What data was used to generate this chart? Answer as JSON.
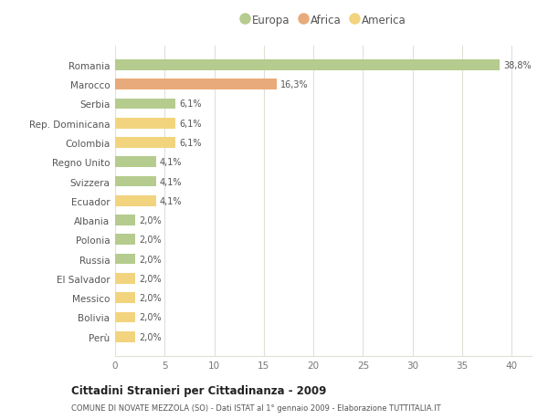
{
  "categories": [
    "Romania",
    "Marocco",
    "Serbia",
    "Rep. Dominicana",
    "Colombia",
    "Regno Unito",
    "Svizzera",
    "Ecuador",
    "Albania",
    "Polonia",
    "Russia",
    "El Salvador",
    "Messico",
    "Bolivia",
    "Perù"
  ],
  "values": [
    38.8,
    16.3,
    6.1,
    6.1,
    6.1,
    4.1,
    4.1,
    4.1,
    2.0,
    2.0,
    2.0,
    2.0,
    2.0,
    2.0,
    2.0
  ],
  "labels": [
    "38,8%",
    "16,3%",
    "6,1%",
    "6,1%",
    "6,1%",
    "4,1%",
    "4,1%",
    "4,1%",
    "2,0%",
    "2,0%",
    "2,0%",
    "2,0%",
    "2,0%",
    "2,0%",
    "2,0%"
  ],
  "colors": [
    "#b5cc8e",
    "#e8aa7a",
    "#b5cc8e",
    "#f2d47e",
    "#f2d47e",
    "#b5cc8e",
    "#b5cc8e",
    "#f2d47e",
    "#b5cc8e",
    "#b5cc8e",
    "#b5cc8e",
    "#f2d47e",
    "#f2d47e",
    "#f2d47e",
    "#f2d47e"
  ],
  "legend_labels": [
    "Europa",
    "Africa",
    "America"
  ],
  "legend_colors": [
    "#b5cc8e",
    "#e8aa7a",
    "#f2d47e"
  ],
  "title1": "Cittadini Stranieri per Cittadinanza - 2009",
  "title2": "COMUNE DI NOVATE MEZZOLA (SO) - Dati ISTAT al 1° gennaio 2009 - Elaborazione TUTTITALIA.IT",
  "xlim": [
    0,
    42
  ],
  "xticks": [
    0,
    5,
    10,
    15,
    20,
    25,
    30,
    35,
    40
  ],
  "bg_color": "#ffffff",
  "grid_color": "#e0e0d8",
  "bar_height": 0.55
}
